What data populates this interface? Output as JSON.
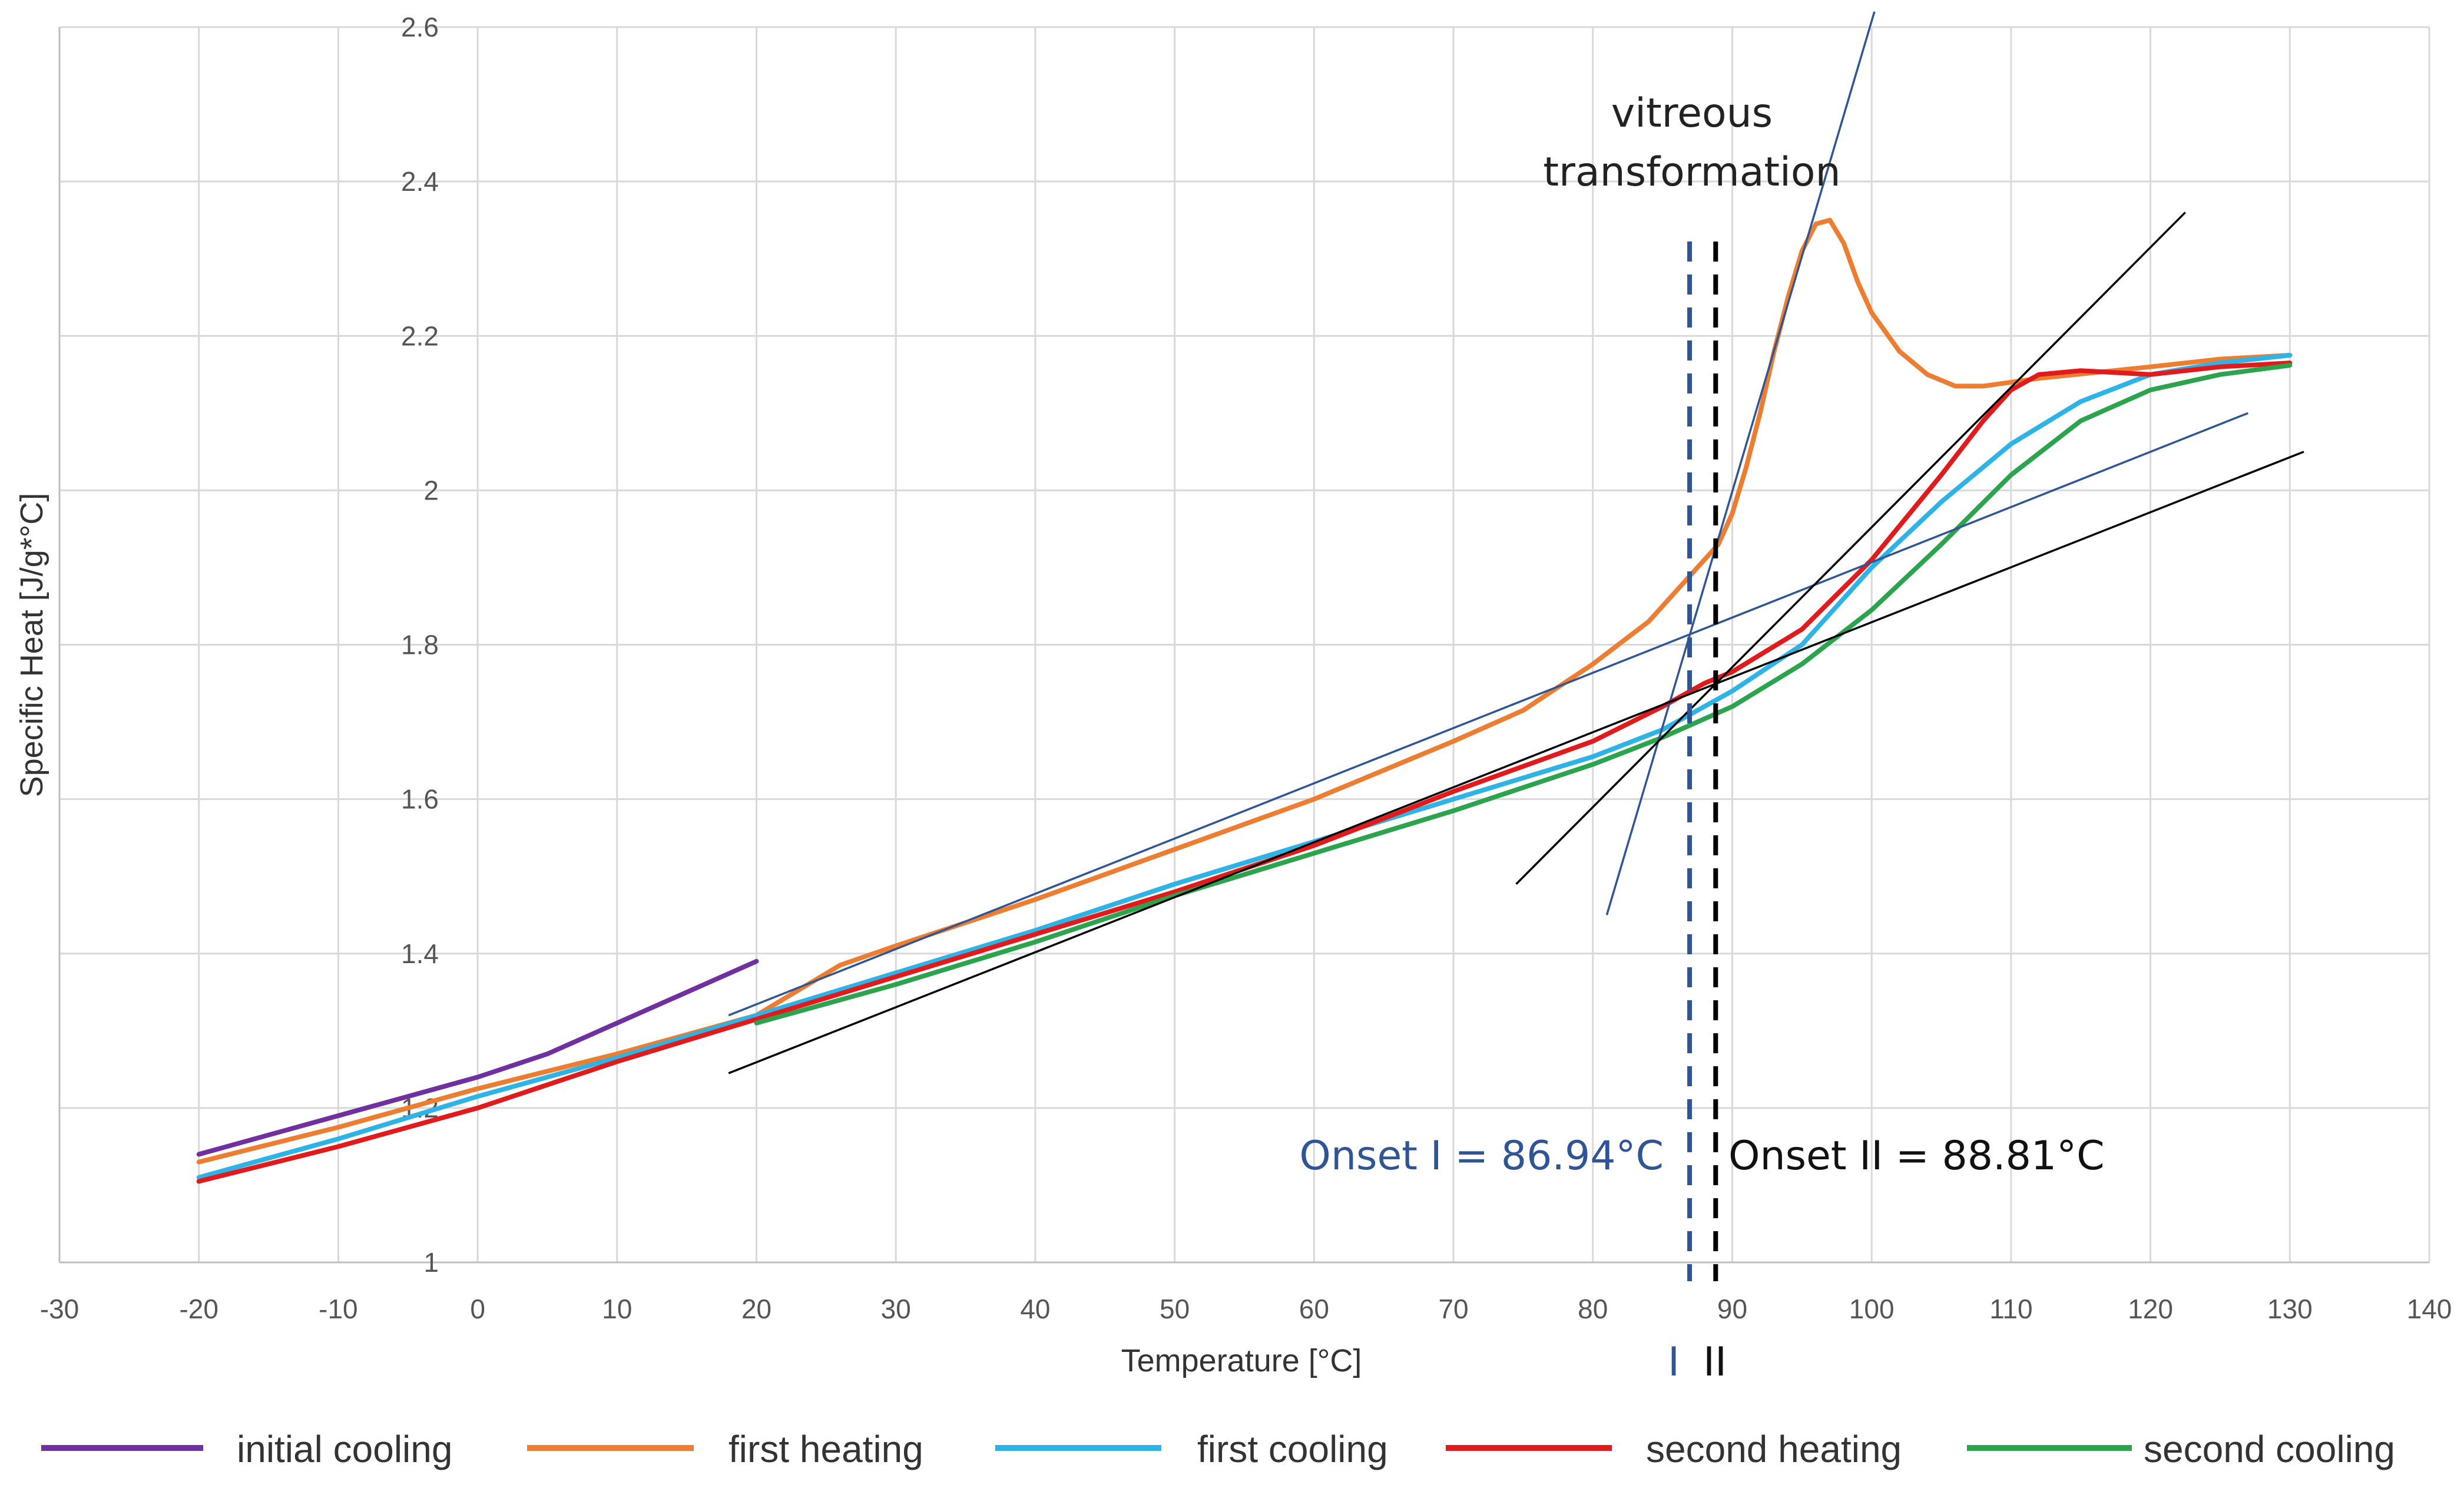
{
  "chart_data": {
    "type": "line",
    "title": "",
    "xlabel": "Temperature [°C]",
    "ylabel": "Specific Heat [J/g*°C]",
    "xlim": [
      -30,
      140
    ],
    "ylim": [
      1,
      2.6
    ],
    "x_ticks": [
      -30,
      -20,
      -10,
      0,
      10,
      20,
      30,
      40,
      50,
      60,
      70,
      80,
      90,
      100,
      110,
      120,
      130,
      140
    ],
    "y_ticks": [
      1,
      1.2,
      1.4,
      1.6,
      1.8,
      2,
      2.2,
      2.4,
      2.6
    ],
    "y_tick_labels": [
      "1",
      "1.2",
      "1.4",
      "1.6",
      "1.8",
      "2",
      "2.2",
      "2.4",
      "2.6"
    ],
    "grid": true,
    "legend_position": "bottom",
    "series": [
      {
        "name": "initial cooling",
        "color": "#7030a0",
        "points": [
          [
            -20,
            1.14
          ],
          [
            -10,
            1.19
          ],
          [
            0,
            1.24
          ],
          [
            5,
            1.27
          ],
          [
            10,
            1.31
          ],
          [
            15,
            1.35
          ],
          [
            20,
            1.39
          ]
        ]
      },
      {
        "name": "first heating",
        "color": "#ed7d31",
        "points": [
          [
            -20,
            1.13
          ],
          [
            -10,
            1.175
          ],
          [
            0,
            1.225
          ],
          [
            10,
            1.27
          ],
          [
            20,
            1.32
          ],
          [
            26,
            1.385
          ],
          [
            30,
            1.41
          ],
          [
            40,
            1.47
          ],
          [
            50,
            1.535
          ],
          [
            60,
            1.6
          ],
          [
            70,
            1.675
          ],
          [
            75,
            1.715
          ],
          [
            80,
            1.775
          ],
          [
            84,
            1.83
          ],
          [
            87,
            1.89
          ],
          [
            89,
            1.93
          ],
          [
            90,
            1.97
          ],
          [
            91,
            2.03
          ],
          [
            92,
            2.1
          ],
          [
            93,
            2.18
          ],
          [
            94,
            2.25
          ],
          [
            95,
            2.31
          ],
          [
            96,
            2.345
          ],
          [
            97,
            2.35
          ],
          [
            98,
            2.32
          ],
          [
            99,
            2.27
          ],
          [
            100,
            2.23
          ],
          [
            102,
            2.18
          ],
          [
            104,
            2.15
          ],
          [
            106,
            2.135
          ],
          [
            108,
            2.135
          ],
          [
            112,
            2.145
          ],
          [
            120,
            2.16
          ],
          [
            125,
            2.17
          ],
          [
            130,
            2.175
          ]
        ]
      },
      {
        "name": "first cooling",
        "color": "#2eb3e6",
        "points": [
          [
            -20,
            1.11
          ],
          [
            -10,
            1.16
          ],
          [
            0,
            1.215
          ],
          [
            10,
            1.265
          ],
          [
            20,
            1.32
          ],
          [
            30,
            1.375
          ],
          [
            40,
            1.43
          ],
          [
            50,
            1.49
          ],
          [
            60,
            1.545
          ],
          [
            70,
            1.6
          ],
          [
            80,
            1.655
          ],
          [
            85,
            1.69
          ],
          [
            90,
            1.74
          ],
          [
            95,
            1.8
          ],
          [
            100,
            1.9
          ],
          [
            105,
            1.985
          ],
          [
            110,
            2.06
          ],
          [
            115,
            2.115
          ],
          [
            120,
            2.15
          ],
          [
            125,
            2.165
          ],
          [
            130,
            2.175
          ]
        ]
      },
      {
        "name": "second heating",
        "color": "#e31a1c",
        "points": [
          [
            -20,
            1.105
          ],
          [
            -10,
            1.15
          ],
          [
            0,
            1.2
          ],
          [
            10,
            1.26
          ],
          [
            20,
            1.315
          ],
          [
            30,
            1.37
          ],
          [
            40,
            1.425
          ],
          [
            50,
            1.48
          ],
          [
            60,
            1.54
          ],
          [
            70,
            1.61
          ],
          [
            80,
            1.675
          ],
          [
            85,
            1.72
          ],
          [
            88,
            1.75
          ],
          [
            90,
            1.765
          ],
          [
            95,
            1.82
          ],
          [
            100,
            1.91
          ],
          [
            105,
            2.02
          ],
          [
            108,
            2.09
          ],
          [
            110,
            2.13
          ],
          [
            112,
            2.15
          ],
          [
            115,
            2.155
          ],
          [
            120,
            2.15
          ],
          [
            125,
            2.16
          ],
          [
            130,
            2.165
          ]
        ]
      },
      {
        "name": "second cooling",
        "color": "#2ca44e",
        "points": [
          [
            20,
            1.31
          ],
          [
            30,
            1.36
          ],
          [
            40,
            1.415
          ],
          [
            50,
            1.475
          ],
          [
            60,
            1.53
          ],
          [
            70,
            1.585
          ],
          [
            80,
            1.645
          ],
          [
            85,
            1.68
          ],
          [
            90,
            1.72
          ],
          [
            95,
            1.775
          ],
          [
            100,
            1.845
          ],
          [
            105,
            1.93
          ],
          [
            110,
            2.02
          ],
          [
            115,
            2.09
          ],
          [
            120,
            2.13
          ],
          [
            125,
            2.15
          ],
          [
            130,
            2.162
          ]
        ]
      }
    ],
    "tangent_lines": [
      {
        "name": "tangent-I-baseline",
        "color": "#2f5597",
        "points": [
          [
            18,
            1.32
          ],
          [
            127,
            2.1
          ]
        ]
      },
      {
        "name": "tangent-I-steep",
        "color": "#2f5597",
        "points": [
          [
            81,
            1.45
          ],
          [
            100.2,
            2.62
          ]
        ]
      },
      {
        "name": "tangent-II-baseline",
        "color": "#000000",
        "points": [
          [
            18,
            1.245
          ],
          [
            131,
            2.05
          ]
        ]
      },
      {
        "name": "tangent-II-steep",
        "color": "#000000",
        "points": [
          [
            74.5,
            1.49
          ],
          [
            122.5,
            2.36
          ]
        ]
      }
    ],
    "onset_markers": [
      {
        "x": 86.94,
        "color": "#2f5597",
        "label": "Onset I = 86.94°C",
        "axis_marker": "I"
      },
      {
        "x": 88.81,
        "color": "#000000",
        "label": "Onset II = 88.81°C",
        "axis_marker": "II"
      }
    ],
    "annotations": {
      "transition_line1": "vitreous",
      "transition_line2": "transformation"
    }
  }
}
